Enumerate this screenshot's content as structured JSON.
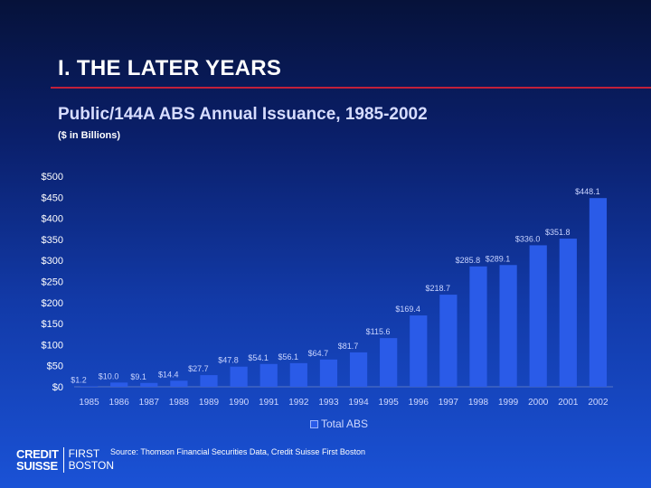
{
  "slide": {
    "title": "I.  THE LATER YEARS"
  },
  "chart_data": {
    "type": "bar",
    "title": "Public/144A ABS Annual Issuance, 1985-2002",
    "subtitle": "($ in Billions)",
    "categories": [
      "1985",
      "1986",
      "1987",
      "1988",
      "1989",
      "1990",
      "1991",
      "1992",
      "1993",
      "1994",
      "1995",
      "1996",
      "1997",
      "1998",
      "1999",
      "2000",
      "2001",
      "2002"
    ],
    "series": [
      {
        "name": "Total ABS",
        "values": [
          1.2,
          10.0,
          9.1,
          14.4,
          27.7,
          47.8,
          54.1,
          56.1,
          64.7,
          81.7,
          115.6,
          169.4,
          218.7,
          285.8,
          289.1,
          336.0,
          351.8,
          448.1
        ],
        "labels": [
          "$1.2",
          "$10.0",
          "$9.1",
          "$14.4",
          "$27.7",
          "$47.8",
          "$54.1",
          "$56.1",
          "$64.7",
          "$81.7",
          "$115.6",
          "$169.4",
          "$218.7",
          "$285.8",
          "$289.1",
          "$336.0",
          "$351.8",
          "$448.1"
        ]
      }
    ],
    "y_ticks": [
      0,
      50,
      100,
      150,
      200,
      250,
      300,
      350,
      400,
      450,
      500
    ],
    "y_tick_labels": [
      "$0",
      "$50",
      "$100",
      "$150",
      "$200",
      "$250",
      "$300",
      "$350",
      "$400",
      "$450",
      "$500"
    ],
    "ylim": [
      0,
      500
    ],
    "grid": false,
    "legend_position": "bottom-center",
    "bar_color": "#2a5be8"
  },
  "footer": {
    "source": "Source:  Thomson Financial Securities Data, Credit Suisse First Boston",
    "logo_left_1": "CREDIT",
    "logo_left_2": "SUISSE",
    "logo_right_1": "FIRST",
    "logo_right_2": "BOSTON"
  }
}
